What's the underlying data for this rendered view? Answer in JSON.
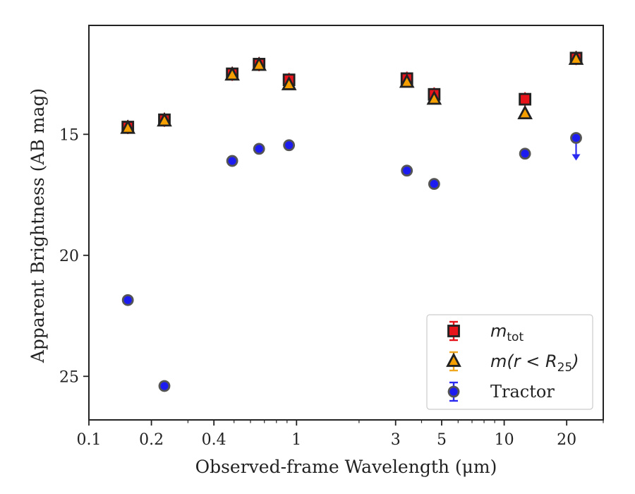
{
  "chart_data": {
    "type": "scatter",
    "xlabel": "Observed-frame Wavelength (μm)",
    "ylabel": "Apparent Brightness (AB mag)",
    "x_scale": "log",
    "y_inverted": true,
    "xlim": [
      0.1,
      30
    ],
    "ylim": [
      26.8,
      10.5
    ],
    "x_ticks": [
      0.1,
      0.2,
      0.4,
      1,
      3,
      5,
      10,
      20
    ],
    "x_tick_labels": [
      "0.1",
      "0.2",
      "0.4",
      "1",
      "3",
      "5",
      "10",
      "20"
    ],
    "y_ticks": [
      15,
      20,
      25
    ],
    "y_tick_labels": [
      "15",
      "20",
      "25"
    ],
    "legend_position": "lower-right",
    "series": [
      {
        "name": "m_tot",
        "legend": {
          "symbol": "m",
          "sub": "tot",
          "text": ""
        },
        "marker": "square",
        "color": "#e8141c",
        "x": [
          0.154,
          0.231,
          0.49,
          0.66,
          0.92,
          3.4,
          4.6,
          12.6,
          22.2
        ],
        "y": [
          14.7,
          14.4,
          12.5,
          12.1,
          12.75,
          12.7,
          13.35,
          13.55,
          11.85
        ]
      },
      {
        "name": "m(r < R25)",
        "legend": {
          "symbol": "m(r < R",
          "sub": "25",
          "text": ")"
        },
        "marker": "triangle",
        "color": "#f5a000",
        "x": [
          0.154,
          0.231,
          0.49,
          0.66,
          0.92,
          3.4,
          4.6,
          12.6,
          22.2
        ],
        "y": [
          14.75,
          14.45,
          12.55,
          12.15,
          12.95,
          12.85,
          13.55,
          14.15,
          11.9
        ]
      },
      {
        "name": "Tractor",
        "legend": {
          "symbol": "",
          "sub": "",
          "text": "Tractor"
        },
        "marker": "circle",
        "color": "#1c1cf0",
        "x": [
          0.154,
          0.231,
          0.49,
          0.66,
          0.92,
          3.4,
          4.6,
          12.6,
          22.2
        ],
        "y": [
          21.85,
          25.4,
          16.1,
          15.6,
          15.45,
          16.5,
          17.05,
          15.8,
          15.15
        ],
        "upper_limit": [
          false,
          false,
          false,
          false,
          false,
          false,
          false,
          false,
          true
        ]
      }
    ]
  }
}
